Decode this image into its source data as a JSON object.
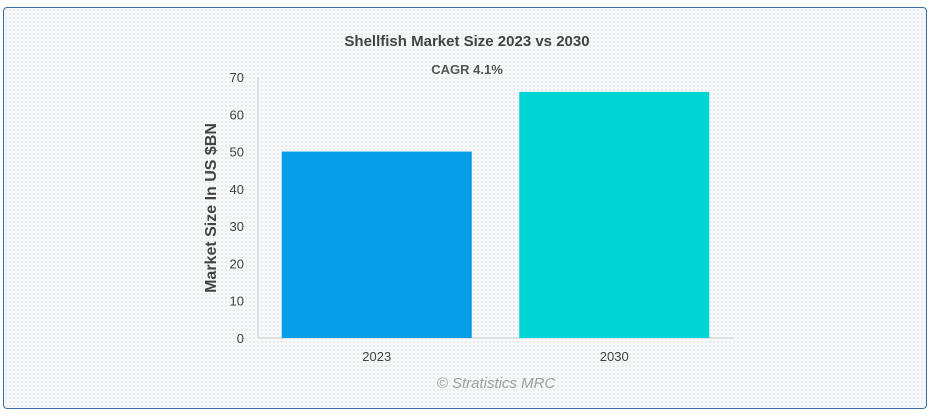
{
  "chart_data": {
    "type": "bar",
    "title": "Shellfish Market Size 2023 vs 2030",
    "subtitle": "CAGR 4.1%",
    "categories": [
      "2023",
      "2030"
    ],
    "values": [
      50,
      66
    ],
    "colors": [
      "#069ee8",
      "#00d4d4"
    ],
    "xlabel": "",
    "ylabel": "Market Size In US $BN",
    "ylim": [
      0,
      70
    ],
    "yticks": [
      "0",
      "10",
      "20",
      "30",
      "40",
      "50",
      "60",
      "70"
    ],
    "grid": false,
    "legend": "none"
  },
  "credit": "© Stratistics MRC"
}
